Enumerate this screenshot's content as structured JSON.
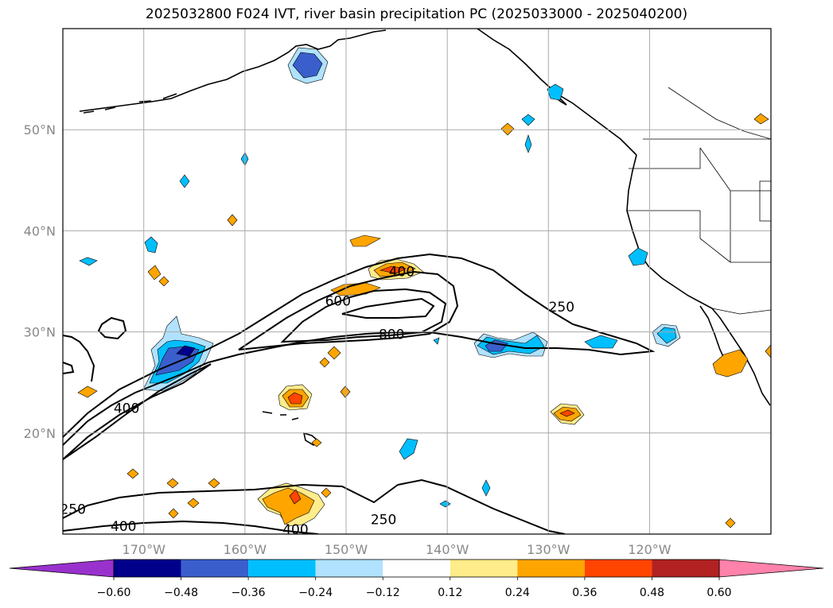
{
  "title": "2025032800 F024 IVT, river basin precipitation PC (2025033000 - 2025040200)",
  "map": {
    "lon_range": [
      -178,
      -108
    ],
    "lat_range": [
      10,
      60
    ],
    "grid": true,
    "lat_ticks": [
      {
        "value": 20,
        "label": "20°N"
      },
      {
        "value": 30,
        "label": "30°N"
      },
      {
        "value": 40,
        "label": "40°N"
      },
      {
        "value": 50,
        "label": "50°N"
      }
    ],
    "lon_ticks": [
      {
        "value": -170,
        "label": "170°W"
      },
      {
        "value": -160,
        "label": "160°W"
      },
      {
        "value": -150,
        "label": "150°W"
      },
      {
        "value": -140,
        "label": "140°W"
      },
      {
        "value": -130,
        "label": "130°W"
      },
      {
        "value": -120,
        "label": "120°W"
      }
    ],
    "ivt_contour_labels": [
      {
        "text": "400",
        "lon": -144.5,
        "lat": 35.5
      },
      {
        "text": "600",
        "lon": -150.8,
        "lat": 32.6
      },
      {
        "text": "800",
        "lon": -145.5,
        "lat": 29.3
      },
      {
        "text": "250",
        "lon": -128.7,
        "lat": 32.0
      },
      {
        "text": "400",
        "lon": -171.7,
        "lat": 22.0
      },
      {
        "text": "250",
        "lon": -177.0,
        "lat": 12.0
      },
      {
        "text": "400",
        "lon": -172.0,
        "lat": 10.3
      },
      {
        "text": "400",
        "lon": -155.0,
        "lat": 10.0
      },
      {
        "text": "250",
        "lon": -146.3,
        "lat": 11.0
      }
    ]
  },
  "colorbar": {
    "colors": [
      "#9932CC",
      "#00008B",
      "#3A5FCD",
      "#00BFFF",
      "#B0E2FF",
      "#FFFFFF",
      "#FFEC8B",
      "#FFA500",
      "#FF4500",
      "#B22222",
      "#FF82AB"
    ],
    "tick_labels": [
      "−0.60",
      "−0.48",
      "−0.36",
      "−0.24",
      "−0.12",
      "0.12",
      "0.24",
      "0.36",
      "0.48",
      "0.60"
    ]
  }
}
